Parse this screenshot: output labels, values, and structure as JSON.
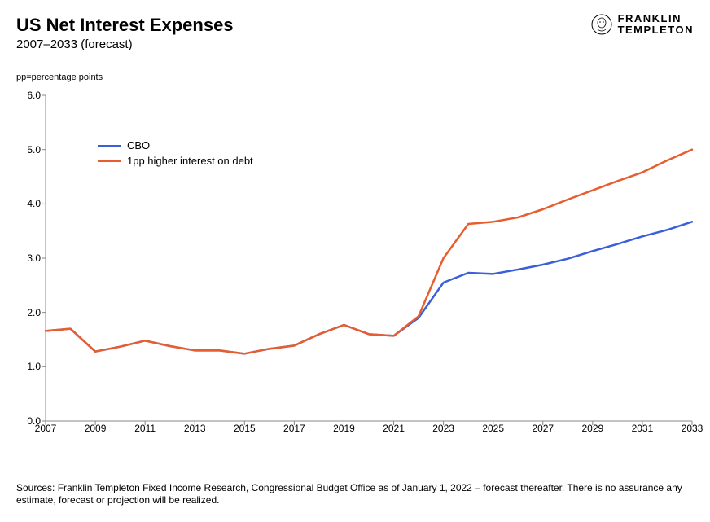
{
  "header": {
    "title": "US Net Interest Expenses",
    "subtitle": "2007–2033 (forecast)",
    "axis_note": "pp=percentage points"
  },
  "logo": {
    "line1": "FRANKLIN",
    "line2": "TEMPLETON"
  },
  "chart": {
    "type": "line",
    "background_color": "#ffffff",
    "axis_color": "#888888",
    "tick_color": "#888888",
    "text_color": "#000000",
    "xlim": [
      2007,
      2033
    ],
    "ylim": [
      0.0,
      6.0
    ],
    "yticks": [
      0.0,
      1.0,
      2.0,
      3.0,
      4.0,
      5.0,
      6.0
    ],
    "xticks": [
      2007,
      2009,
      2011,
      2013,
      2015,
      2017,
      2019,
      2021,
      2023,
      2025,
      2027,
      2029,
      2031,
      2033
    ],
    "ytick_format": "fixed1",
    "line_width": 2.5,
    "series": [
      {
        "id": "cbo",
        "label": "CBO",
        "color": "#3a5fd9",
        "x": [
          2007,
          2008,
          2009,
          2010,
          2011,
          2012,
          2013,
          2014,
          2015,
          2016,
          2017,
          2018,
          2019,
          2020,
          2021,
          2022,
          2023,
          2024,
          2025,
          2026,
          2027,
          2028,
          2029,
          2030,
          2031,
          2032,
          2033
        ],
        "y": [
          1.66,
          1.7,
          1.28,
          1.37,
          1.48,
          1.38,
          1.3,
          1.3,
          1.24,
          1.33,
          1.39,
          1.6,
          1.77,
          1.6,
          1.57,
          1.9,
          2.55,
          2.73,
          2.71,
          2.79,
          2.88,
          2.99,
          3.13,
          3.26,
          3.4,
          3.52,
          3.67
        ]
      },
      {
        "id": "higher",
        "label": "1pp higher interest on debt",
        "color": "#e85d2e",
        "x": [
          2007,
          2008,
          2009,
          2010,
          2011,
          2012,
          2013,
          2014,
          2015,
          2016,
          2017,
          2018,
          2019,
          2020,
          2021,
          2022,
          2023,
          2024,
          2025,
          2026,
          2027,
          2028,
          2029,
          2030,
          2031,
          2032,
          2033
        ],
        "y": [
          1.66,
          1.7,
          1.28,
          1.37,
          1.48,
          1.38,
          1.3,
          1.3,
          1.24,
          1.33,
          1.39,
          1.6,
          1.77,
          1.6,
          1.57,
          1.93,
          3.0,
          3.63,
          3.67,
          3.75,
          3.9,
          4.08,
          4.25,
          4.42,
          4.58,
          4.8,
          5.0
        ]
      }
    ],
    "legend": {
      "position": "upper-left",
      "font_size": 13
    }
  },
  "footer": {
    "text": "Sources: Franklin Templeton Fixed Income Research, Congressional Budget Office as of January 1, 2022 – forecast thereafter. There is no assurance any estimate, forecast or projection will be realized."
  }
}
